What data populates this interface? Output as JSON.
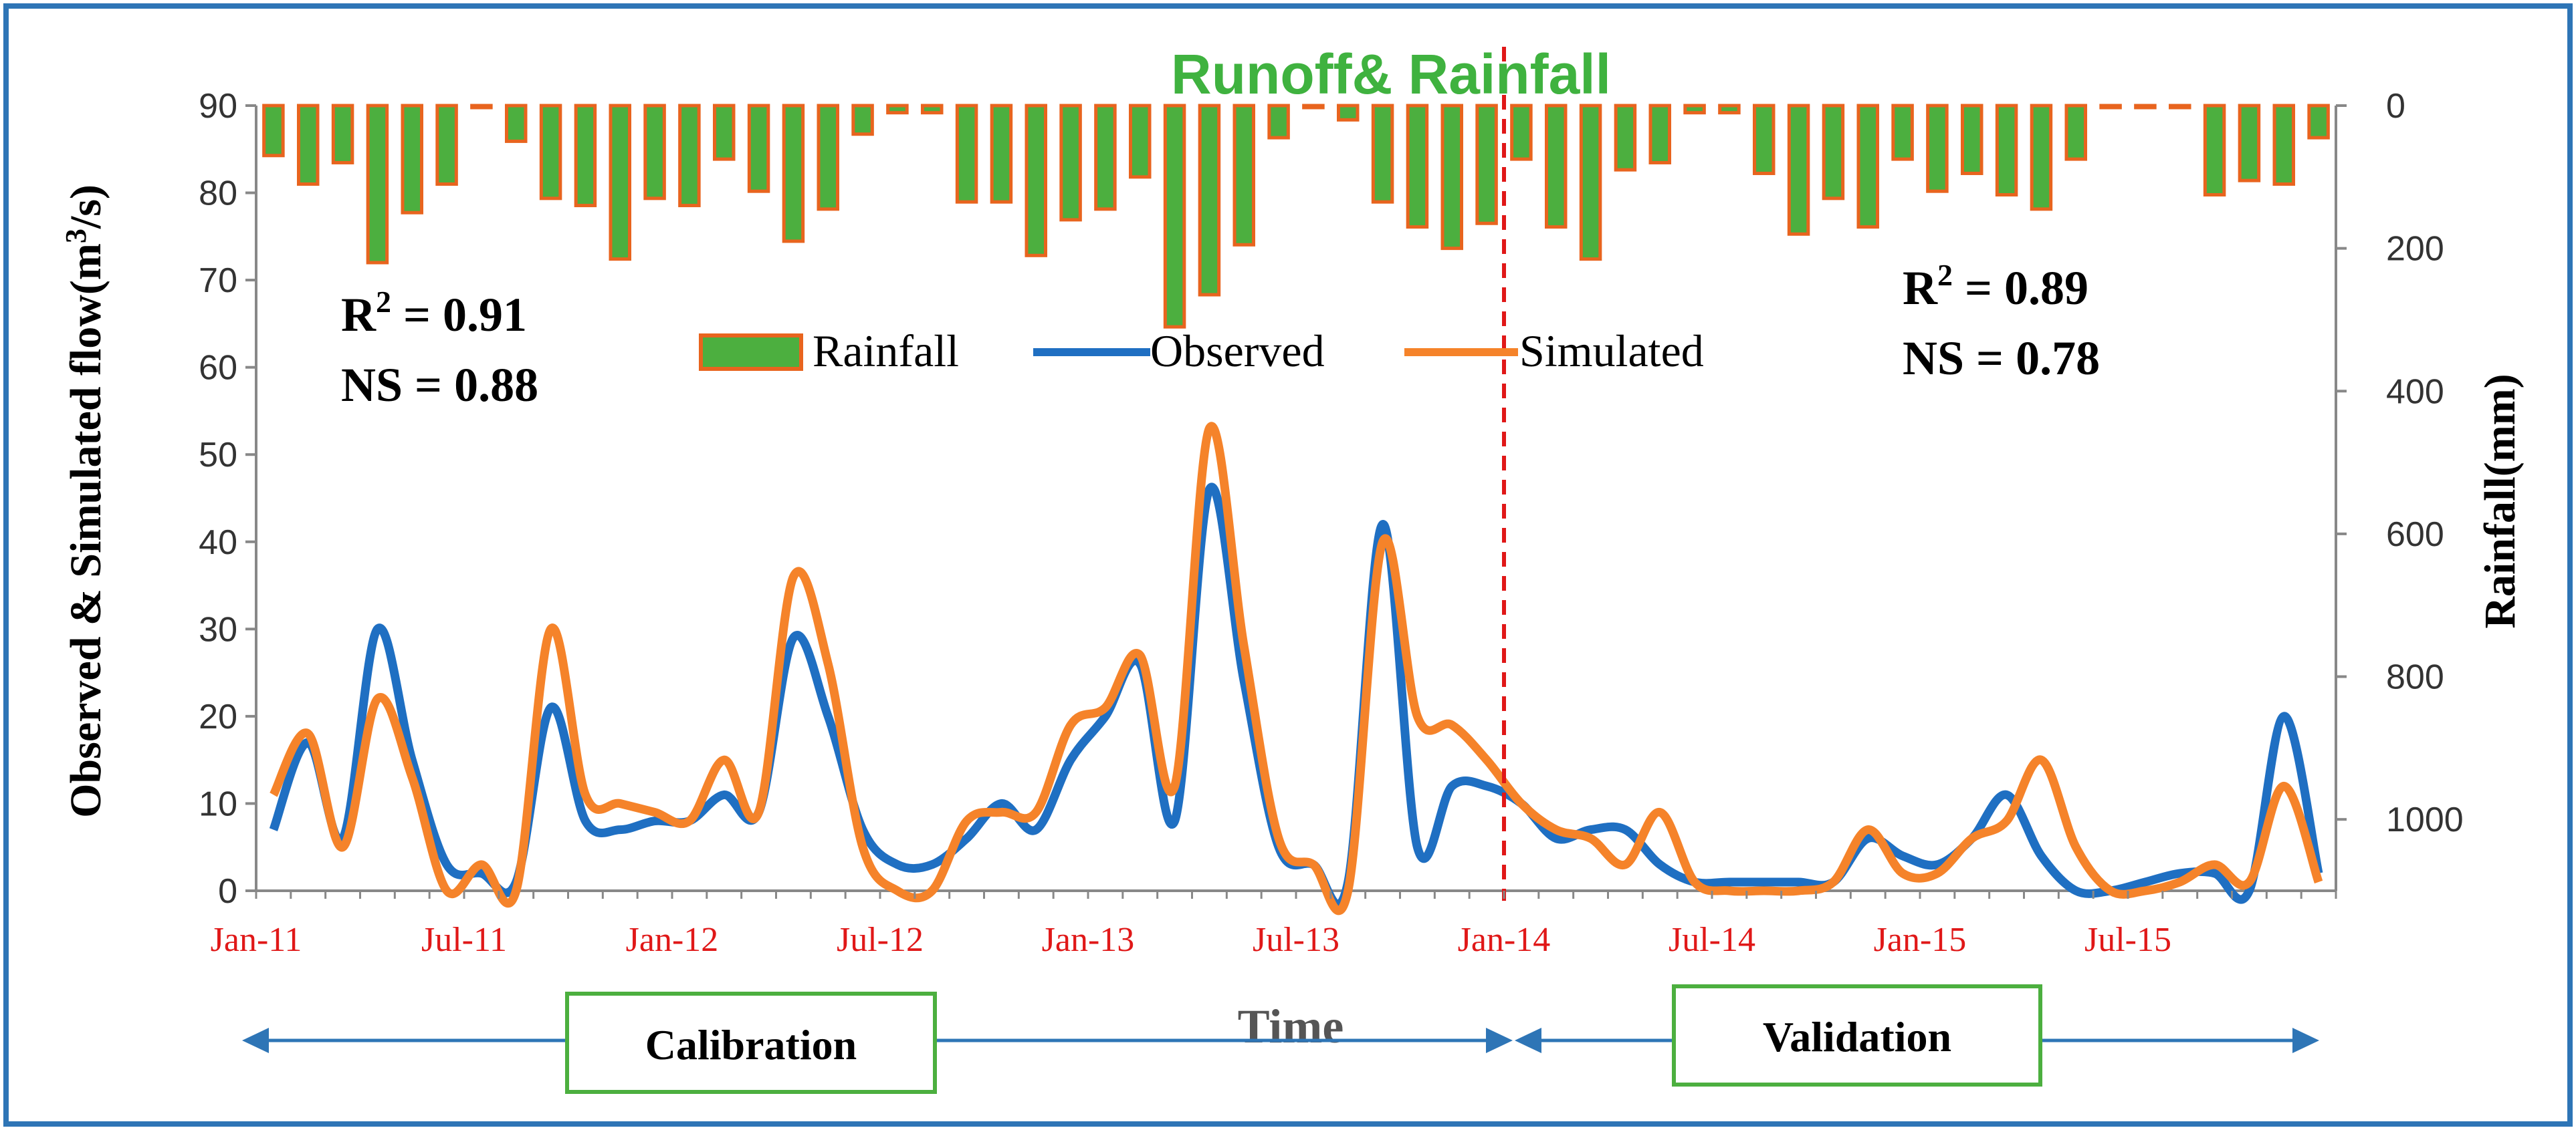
{
  "chart_data": {
    "type": "line",
    "title": "Runoff& Rainfall",
    "xlabel": "Time",
    "ylabel_left": "Observed & Simulated flow(m",
    "ylabel_left_sup": "3",
    "ylabel_left_end": "/s)",
    "ylabel_right": "Rainfall(mm)",
    "ylim_left": [
      0,
      90
    ],
    "yticks_left": [
      "0",
      "10",
      "20",
      "30",
      "40",
      "50",
      "60",
      "70",
      "80",
      "90"
    ],
    "ylim_right_inverted": [
      0,
      1100
    ],
    "yticks_right": [
      "0",
      "200",
      "400",
      "600",
      "800",
      "1000"
    ],
    "x_tick_labels": [
      "Jan-11",
      "Jul-11",
      "Jan-12",
      "Jul-12",
      "Jan-13",
      "Jul-13",
      "Jan-14",
      "Jul-14",
      "Jan-15",
      "Jul-15"
    ],
    "x_tick_index": [
      0,
      6,
      12,
      18,
      24,
      30,
      36,
      42,
      48,
      54
    ],
    "months": 60,
    "legend": [
      "Rainfall",
      "Observed",
      "Simulated"
    ],
    "colors": {
      "observed": "#1f6fc2",
      "simulated": "#f5832a",
      "rainfall_fill": "#4caf3f",
      "rainfall_edge": "#e8641e",
      "divider": "#e01818",
      "period_border": "#4caf3f",
      "frame": "#2e75b6"
    },
    "series": [
      {
        "name": "Observed",
        "values": [
          7,
          17,
          6,
          30,
          15,
          3,
          2,
          1,
          21,
          8,
          7,
          8,
          8,
          11,
          9,
          29,
          20,
          7,
          3,
          3,
          6,
          10,
          7,
          15,
          20,
          26,
          8,
          46,
          24,
          5,
          3,
          1,
          42,
          5,
          12,
          12,
          10,
          6,
          7,
          7,
          3,
          1,
          1,
          1,
          1,
          1,
          6,
          4,
          3,
          6,
          11,
          4,
          0,
          0,
          1,
          2,
          2,
          0,
          20,
          2
        ]
      },
      {
        "name": "Simulated",
        "values": [
          11,
          18,
          5,
          22,
          13,
          0,
          3,
          0,
          30,
          11,
          10,
          9,
          8,
          15,
          9,
          36,
          26,
          5,
          0,
          0,
          8,
          9,
          9,
          19,
          21,
          27,
          12,
          53,
          28,
          6,
          3,
          0,
          40,
          20,
          19,
          15,
          10,
          7,
          6,
          3,
          9,
          1,
          0,
          0,
          0,
          1,
          7,
          2,
          2,
          6,
          8,
          15,
          5,
          0,
          0,
          1,
          3,
          1,
          12,
          1
        ]
      },
      {
        "name": "Rainfall",
        "values": [
          70,
          110,
          80,
          220,
          150,
          110,
          0,
          50,
          130,
          140,
          215,
          130,
          140,
          75,
          120,
          190,
          145,
          40,
          10,
          10,
          135,
          135,
          210,
          160,
          145,
          100,
          310,
          265,
          195,
          45,
          0,
          20,
          135,
          170,
          200,
          165,
          75,
          170,
          215,
          90,
          80,
          10,
          10,
          95,
          180,
          130,
          170,
          75,
          120,
          95,
          125,
          145,
          75,
          0,
          0,
          0,
          125,
          105,
          110,
          45
        ]
      }
    ],
    "annotations": {
      "calibration": {
        "r2_prefix": "R",
        "r2_sup": "2",
        "r2_value": " = 0.91",
        "ns": "NS = 0.88",
        "label": "Calibration"
      },
      "validation": {
        "r2_prefix": "R",
        "r2_sup": "2",
        "r2_value": " = 0.89",
        "ns": "NS = 0.78",
        "label": "Validation"
      }
    }
  }
}
